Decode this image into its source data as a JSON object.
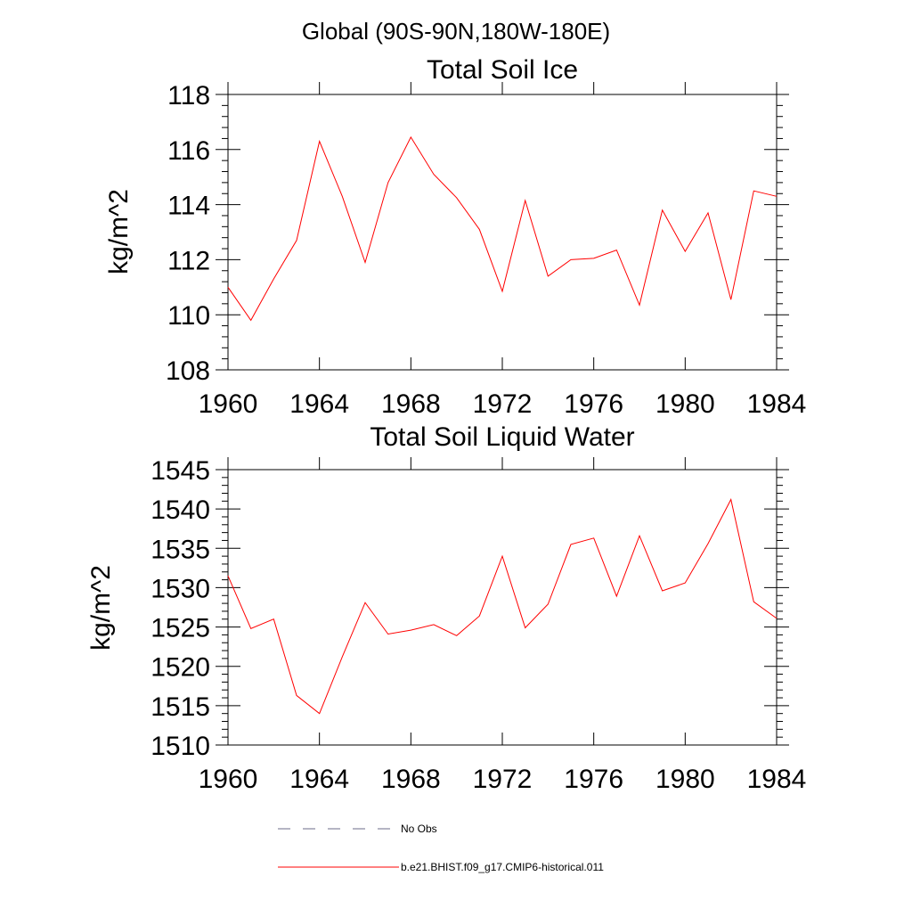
{
  "suptitle": "Global (90S-90N,180W-180E)",
  "colors": {
    "model": "#ff0000",
    "obs": "#6b6b8a",
    "axis": "#000000"
  },
  "legend": [
    {
      "label": "No Obs",
      "style": "dashed",
      "color": "#6b6b8a"
    },
    {
      "label": "b.e21.BHIST.f09_g17.CMIP6-historical.011",
      "style": "solid",
      "color": "#ff0000"
    }
  ],
  "chart_data": [
    {
      "type": "line",
      "title": "Total Soil Ice",
      "ylabel": "kg/m^2",
      "xlabel": "",
      "xlim": [
        1960,
        1984
      ],
      "ylim": [
        108,
        118
      ],
      "xticks": [
        1960,
        1964,
        1968,
        1972,
        1976,
        1980,
        1984
      ],
      "xtick_labels": [
        "1960",
        "1964",
        "1968",
        "1972",
        "1976",
        "1980",
        "1984"
      ],
      "yticks": [
        108,
        110,
        112,
        114,
        116,
        118
      ],
      "ytick_labels": [
        "108",
        "110",
        "112",
        "114",
        "116",
        "118"
      ],
      "grid": false,
      "series": [
        {
          "color": "#ff0000",
          "x": [
            1960,
            1961,
            1962,
            1963,
            1964,
            1965,
            1966,
            1967,
            1968,
            1969,
            1970,
            1971,
            1972,
            1973,
            1974,
            1975,
            1976,
            1977,
            1978,
            1979,
            1980,
            1981,
            1982,
            1983,
            1984
          ],
          "y": [
            111.0,
            109.8,
            111.3,
            112.7,
            116.3,
            114.3,
            111.9,
            114.8,
            116.45,
            115.1,
            114.25,
            113.1,
            110.85,
            114.15,
            111.4,
            112.0,
            112.05,
            112.35,
            110.35,
            113.8,
            112.3,
            113.7,
            110.55,
            114.5,
            114.3
          ]
        }
      ]
    },
    {
      "type": "line",
      "title": "Total Soil Liquid Water",
      "ylabel": "kg/m^2",
      "xlabel": "",
      "xlim": [
        1960,
        1984
      ],
      "ylim": [
        1510,
        1545
      ],
      "xticks": [
        1960,
        1964,
        1968,
        1972,
        1976,
        1980,
        1984
      ],
      "xtick_labels": [
        "1960",
        "1964",
        "1968",
        "1972",
        "1976",
        "1980",
        "1984"
      ],
      "yticks": [
        1510,
        1515,
        1520,
        1525,
        1530,
        1535,
        1540,
        1545
      ],
      "ytick_labels": [
        "1510",
        "1515",
        "1520",
        "1525",
        "1530",
        "1535",
        "1540",
        "1545"
      ],
      "grid": false,
      "series": [
        {
          "color": "#ff0000",
          "x": [
            1960,
            1961,
            1962,
            1963,
            1964,
            1965,
            1966,
            1967,
            1968,
            1969,
            1970,
            1971,
            1972,
            1973,
            1974,
            1975,
            1976,
            1977,
            1978,
            1979,
            1980,
            1981,
            1982,
            1983,
            1984
          ],
          "y": [
            1531.5,
            1524.8,
            1526.0,
            1516.3,
            1514.0,
            1521.2,
            1528.1,
            1524.1,
            1524.6,
            1525.3,
            1523.9,
            1526.4,
            1534.0,
            1524.9,
            1527.9,
            1535.5,
            1536.3,
            1528.9,
            1536.6,
            1529.6,
            1530.6,
            1535.6,
            1541.2,
            1528.2,
            1526.1
          ]
        }
      ]
    }
  ]
}
